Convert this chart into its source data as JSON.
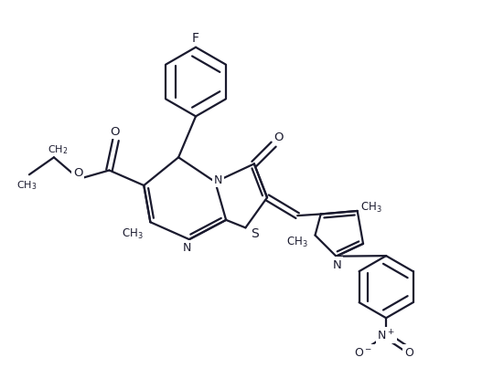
{
  "bg_color": "#ffffff",
  "line_color": "#1a1a2e",
  "line_width": 1.6,
  "figsize": [
    5.51,
    4.27
  ],
  "dpi": 100,
  "xlim": [
    0,
    11
  ],
  "ylim": [
    0,
    9
  ]
}
